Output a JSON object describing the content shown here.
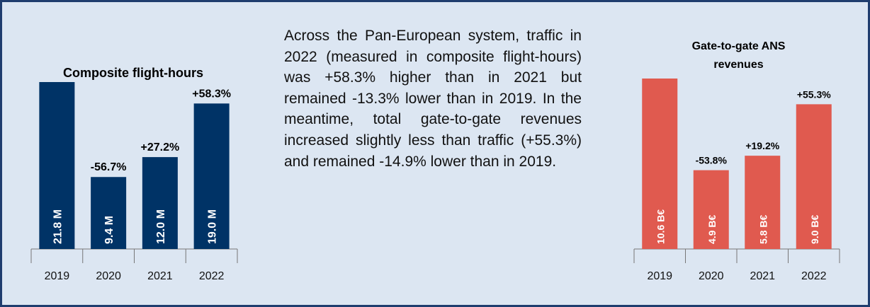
{
  "chart_data": [
    {
      "type": "bar",
      "title": "Composite flight-hours",
      "categories": [
        "2019",
        "2020",
        "2021",
        "2022"
      ],
      "values": [
        21.8,
        9.4,
        12.0,
        19.0
      ],
      "value_labels": [
        "21.8 M",
        "9.4 M",
        "12.0 M",
        "19.0 M"
      ],
      "change_labels": [
        null,
        "-56.7%",
        "+27.2%",
        "+58.3%"
      ],
      "color": "#003366"
    },
    {
      "type": "bar",
      "title": "Gate-to-gate ANS revenues",
      "categories": [
        "2019",
        "2020",
        "2021",
        "2022"
      ],
      "values": [
        10.6,
        4.9,
        5.8,
        9.0
      ],
      "value_labels": [
        "10.6 B€",
        "4.9 B€",
        "5.8 B€",
        "9.0 B€"
      ],
      "change_labels": [
        null,
        "-53.8%",
        "+19.2%",
        "+55.3%"
      ],
      "color": "#e05a4f"
    }
  ],
  "text": "Across the Pan-European system, traffic in 2022 (measured in composite flight-hours) was +58.3% higher than in 2021 but remained -13.3% lower than in 2019. In the meantime, total gate-to-gate revenues increased slightly less than traffic (+55.3%) and remained -14.9% lower than in 2019."
}
